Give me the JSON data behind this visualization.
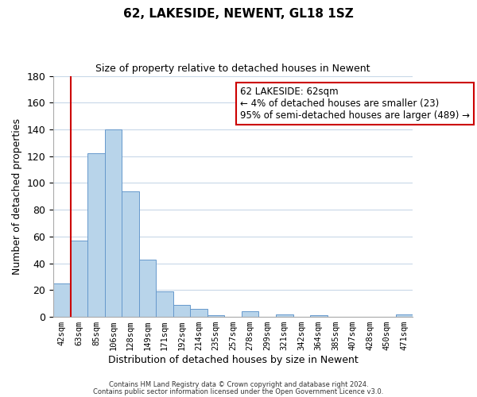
{
  "title": "62, LAKESIDE, NEWENT, GL18 1SZ",
  "subtitle": "Size of property relative to detached houses in Newent",
  "xlabel": "Distribution of detached houses by size in Newent",
  "ylabel": "Number of detached properties",
  "bar_labels": [
    "42sqm",
    "63sqm",
    "85sqm",
    "106sqm",
    "128sqm",
    "149sqm",
    "171sqm",
    "192sqm",
    "214sqm",
    "235sqm",
    "257sqm",
    "278sqm",
    "299sqm",
    "321sqm",
    "342sqm",
    "364sqm",
    "385sqm",
    "407sqm",
    "428sqm",
    "450sqm",
    "471sqm"
  ],
  "bar_values": [
    25,
    57,
    122,
    140,
    94,
    43,
    19,
    9,
    6,
    1,
    0,
    4,
    0,
    2,
    0,
    1,
    0,
    0,
    0,
    0,
    2
  ],
  "bar_color": "#b8d4ea",
  "bar_edge_color": "#6699cc",
  "highlight_line_color": "#cc0000",
  "annotation_title": "62 LAKESIDE: 62sqm",
  "annotation_line1": "← 4% of detached houses are smaller (23)",
  "annotation_line2": "95% of semi-detached houses are larger (489) →",
  "annotation_box_color": "#ffffff",
  "annotation_box_edge": "#cc0000",
  "ylim": [
    0,
    180
  ],
  "yticks": [
    0,
    20,
    40,
    60,
    80,
    100,
    120,
    140,
    160,
    180
  ],
  "footer1": "Contains HM Land Registry data © Crown copyright and database right 2024.",
  "footer2": "Contains public sector information licensed under the Open Government Licence v3.0.",
  "background_color": "#ffffff",
  "grid_color": "#c8d8e8",
  "title_fontsize": 11,
  "subtitle_fontsize": 9
}
